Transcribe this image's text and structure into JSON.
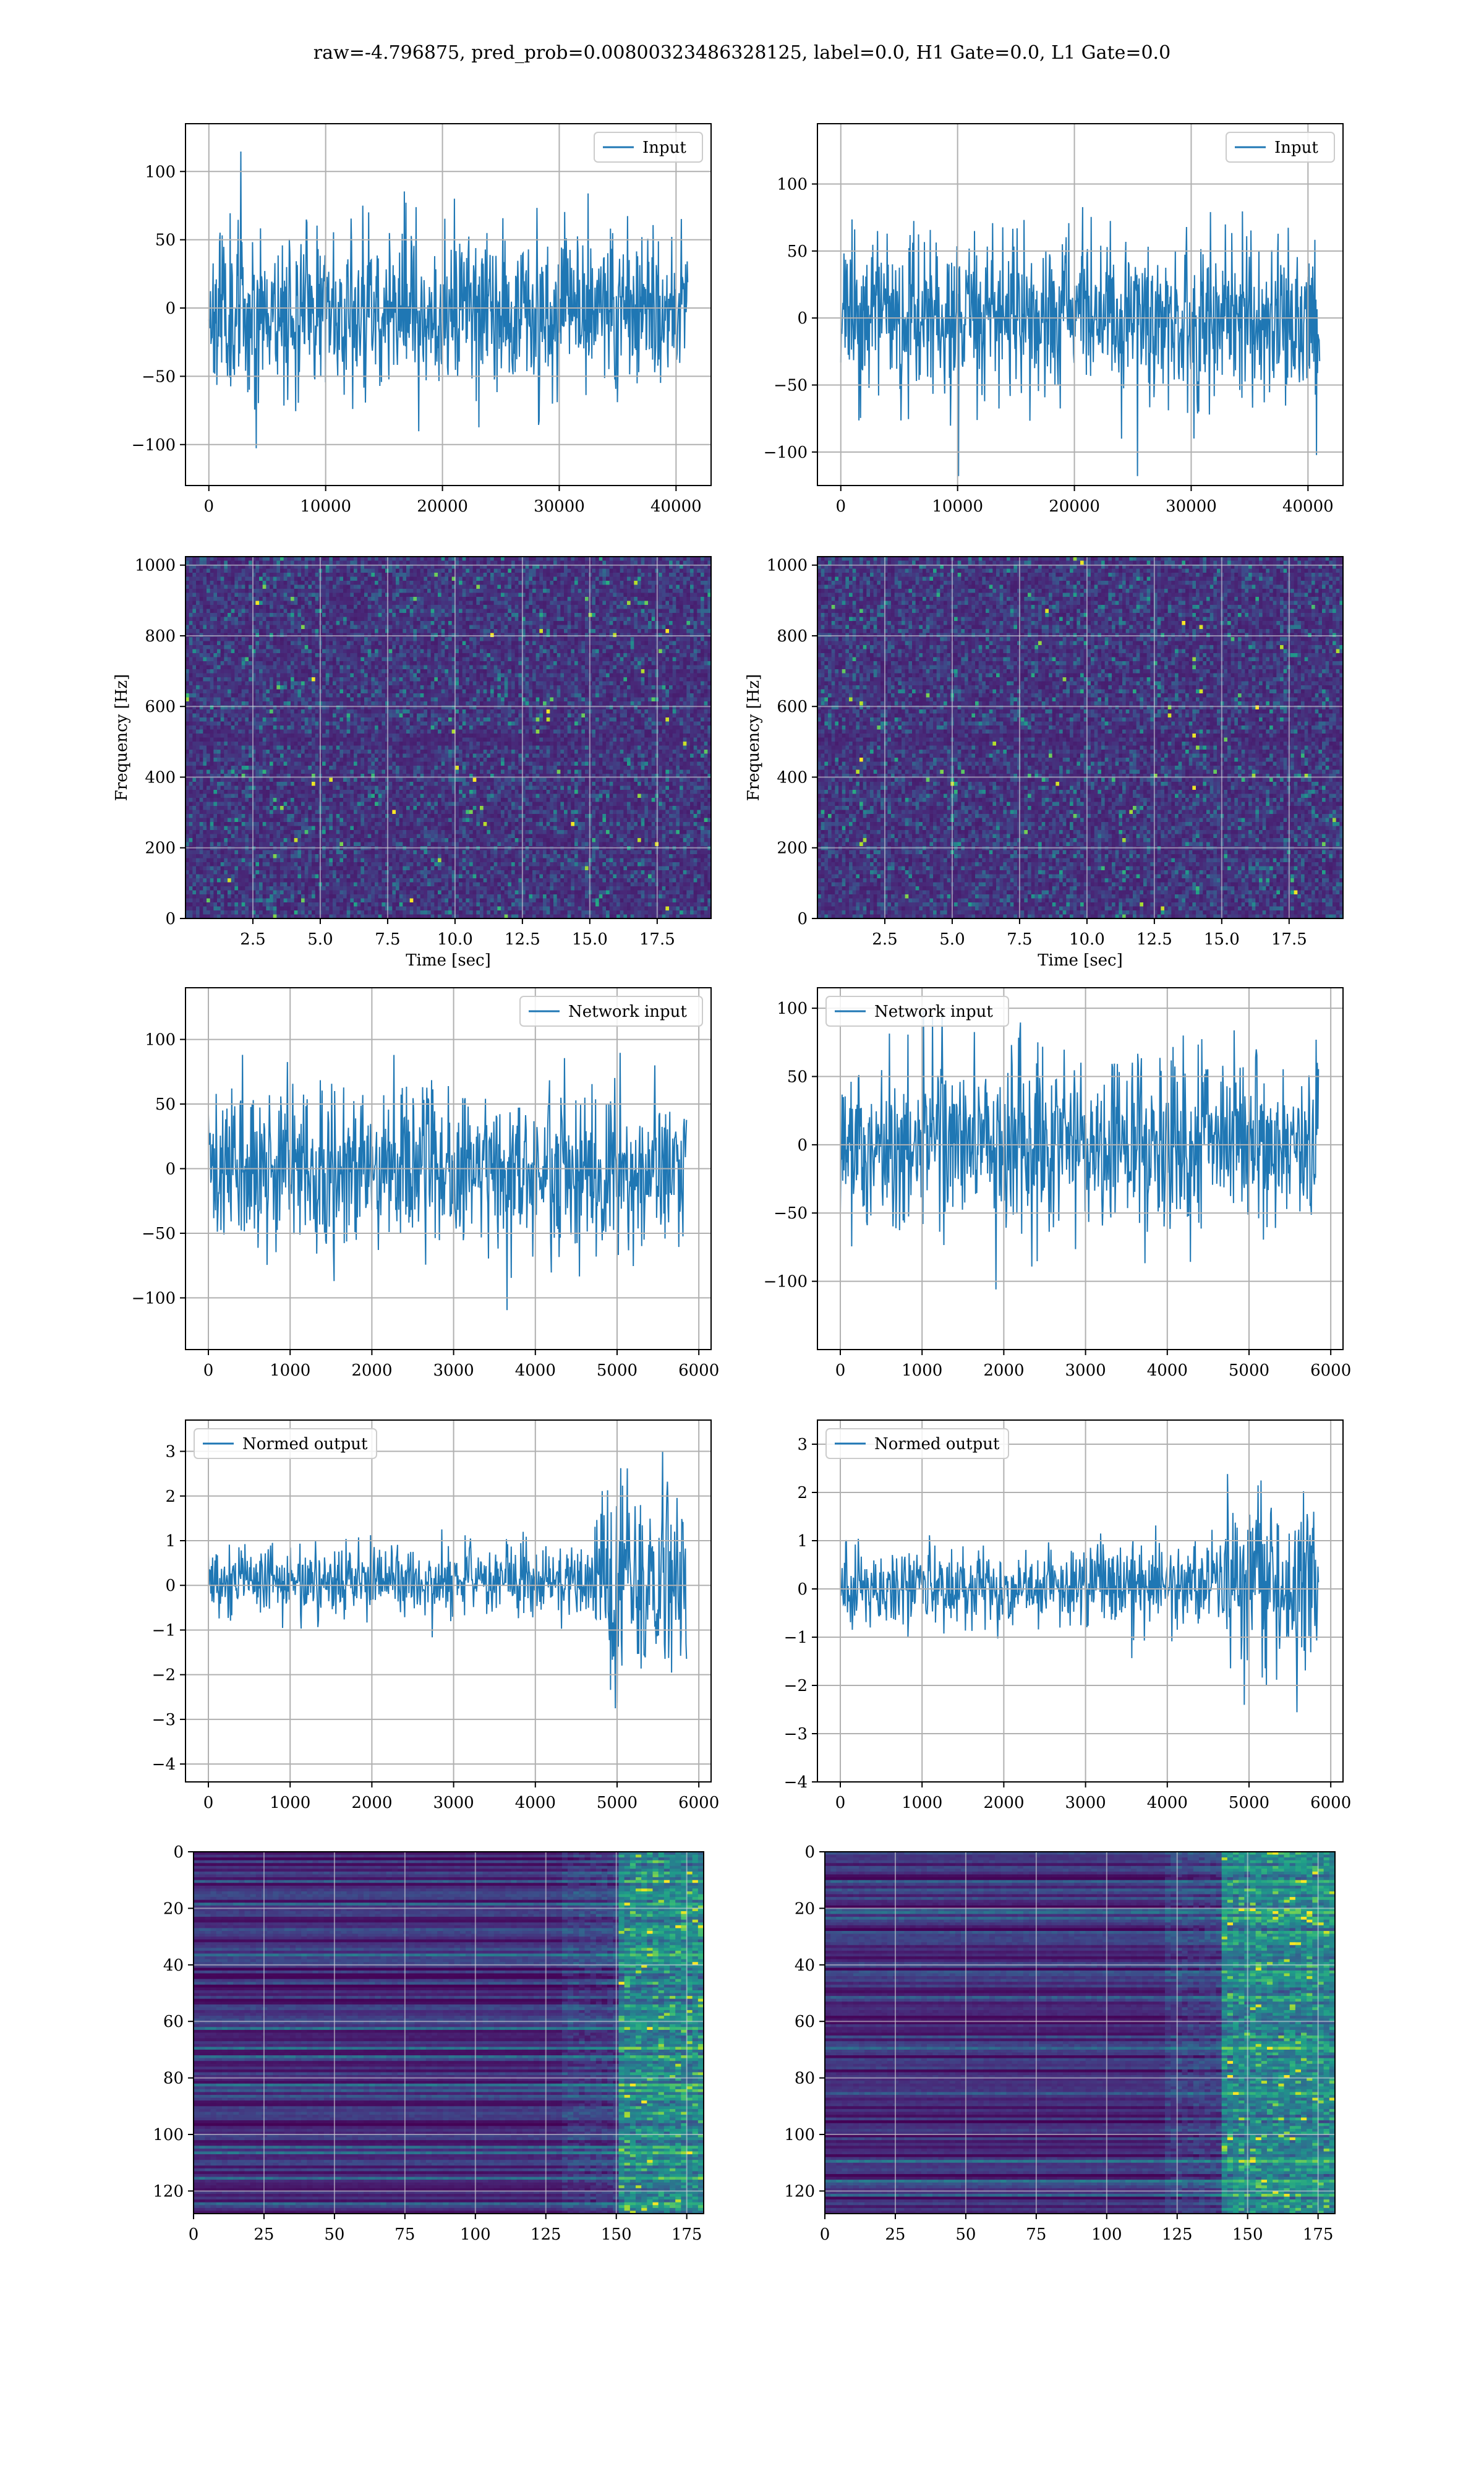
{
  "figure": {
    "suptitle": "raw=-4.796875, pred_prob=0.00800323486328125, label=0.0, H1 Gate=0.0, L1 Gate=0.0"
  },
  "colors": {
    "line": "#1f77b4",
    "grid": "#b0b0b0",
    "viridis": [
      "#440154",
      "#482878",
      "#3e4989",
      "#31688e",
      "#26828e",
      "#1f9e89",
      "#35b779",
      "#6ece58",
      "#b5de2b",
      "#fde725"
    ]
  },
  "chart_data": [
    {
      "id": "input-left",
      "type": "line",
      "legend": "Input",
      "legend_loc": "upper right",
      "xlim": [
        -2000,
        43000
      ],
      "ylim": [
        -130,
        135
      ],
      "xticks": [
        0,
        10000,
        20000,
        30000,
        40000
      ],
      "xtick_labels": [
        "0",
        "10000",
        "20000",
        "30000",
        "40000"
      ],
      "yticks": [
        -100,
        -50,
        0,
        50,
        100
      ],
      "ytick_labels": [
        "−100",
        "−50",
        "0",
        "50",
        "100"
      ],
      "grid": true,
      "xlabel": "",
      "ylabel": "",
      "signal": {
        "x_start": 0,
        "x_end": 41000,
        "n": 900,
        "seed": 11,
        "segments": [
          [
            0,
            41000,
            30
          ]
        ],
        "clip": [
          -125,
          125
        ],
        "bias": 0
      }
    },
    {
      "id": "input-right",
      "type": "line",
      "legend": "Input",
      "legend_loc": "upper right",
      "xlim": [
        -2000,
        43000
      ],
      "ylim": [
        -125,
        145
      ],
      "xticks": [
        0,
        10000,
        20000,
        30000,
        40000
      ],
      "xtick_labels": [
        "0",
        "10000",
        "20000",
        "30000",
        "40000"
      ],
      "yticks": [
        -100,
        -50,
        0,
        50,
        100
      ],
      "ytick_labels": [
        "−100",
        "−50",
        "0",
        "50",
        "100"
      ],
      "grid": true,
      "xlabel": "",
      "ylabel": "",
      "signal": {
        "x_start": 0,
        "x_end": 41000,
        "n": 900,
        "seed": 23,
        "segments": [
          [
            0,
            41000,
            30
          ]
        ],
        "clip": [
          -118,
          135
        ],
        "bias": 0
      }
    },
    {
      "id": "spectrogram-left",
      "type": "heatmap",
      "xlim": [
        0,
        19.5
      ],
      "ylim": [
        0,
        1024
      ],
      "xticks": [
        2.5,
        5.0,
        7.5,
        10.0,
        12.5,
        15.0,
        17.5
      ],
      "xtick_labels": [
        "2.5",
        "5.0",
        "7.5",
        "10.0",
        "12.5",
        "15.0",
        "17.5"
      ],
      "yticks": [
        0,
        200,
        400,
        600,
        800,
        1000
      ],
      "ytick_labels": [
        "0",
        "200",
        "400",
        "600",
        "800",
        "1000"
      ],
      "grid": true,
      "xlabel": "Time [sec]",
      "ylabel": "Frequency [Hz]",
      "heat": {
        "cols": 150,
        "rows": 90,
        "seed": 5,
        "mode": "spectrogram"
      }
    },
    {
      "id": "spectrogram-right",
      "type": "heatmap",
      "xlim": [
        0,
        19.5
      ],
      "ylim": [
        0,
        1024
      ],
      "xticks": [
        2.5,
        5.0,
        7.5,
        10.0,
        12.5,
        15.0,
        17.5
      ],
      "xtick_labels": [
        "2.5",
        "5.0",
        "7.5",
        "10.0",
        "12.5",
        "15.0",
        "17.5"
      ],
      "yticks": [
        0,
        200,
        400,
        600,
        800,
        1000
      ],
      "ytick_labels": [
        "0",
        "200",
        "400",
        "600",
        "800",
        "1000"
      ],
      "grid": true,
      "xlabel": "Time [sec]",
      "ylabel": "Frequency [Hz]",
      "heat": {
        "cols": 150,
        "rows": 90,
        "seed": 9,
        "mode": "spectrogram"
      }
    },
    {
      "id": "network-input-left",
      "type": "line",
      "legend": "Network input",
      "legend_loc": "upper right",
      "xlim": [
        -280,
        6150
      ],
      "ylim": [
        -140,
        140
      ],
      "xticks": [
        0,
        1000,
        2000,
        3000,
        4000,
        5000,
        6000
      ],
      "xtick_labels": [
        "0",
        "1000",
        "2000",
        "3000",
        "4000",
        "5000",
        "6000"
      ],
      "yticks": [
        -100,
        -50,
        0,
        50,
        100
      ],
      "ytick_labels": [
        "−100",
        "−50",
        "0",
        "50",
        "100"
      ],
      "grid": true,
      "xlabel": "",
      "ylabel": "",
      "signal": {
        "x_start": 0,
        "x_end": 5850,
        "n": 800,
        "seed": 31,
        "segments": [
          [
            0,
            5850,
            30
          ]
        ],
        "clip": [
          -125,
          125
        ],
        "bias": 0
      }
    },
    {
      "id": "network-input-right",
      "type": "line",
      "legend": "Network input",
      "legend_loc": "upper left",
      "xlim": [
        -280,
        6150
      ],
      "ylim": [
        -150,
        115
      ],
      "xticks": [
        0,
        1000,
        2000,
        3000,
        4000,
        5000,
        6000
      ],
      "xtick_labels": [
        "0",
        "1000",
        "2000",
        "3000",
        "4000",
        "5000",
        "6000"
      ],
      "yticks": [
        -100,
        -50,
        0,
        50,
        100
      ],
      "ytick_labels": [
        "−100",
        "−50",
        "0",
        "50",
        "100"
      ],
      "grid": true,
      "xlabel": "",
      "ylabel": "",
      "signal": {
        "x_start": 0,
        "x_end": 5850,
        "n": 800,
        "seed": 47,
        "segments": [
          [
            0,
            5850,
            32
          ]
        ],
        "clip": [
          -135,
          105
        ],
        "bias": 0
      }
    },
    {
      "id": "normed-output-left",
      "type": "line",
      "legend": "Normed output",
      "legend_loc": "upper left",
      "xlim": [
        -280,
        6150
      ],
      "ylim": [
        -4.4,
        3.7
      ],
      "xticks": [
        0,
        1000,
        2000,
        3000,
        4000,
        5000,
        6000
      ],
      "xtick_labels": [
        "0",
        "1000",
        "2000",
        "3000",
        "4000",
        "5000",
        "6000"
      ],
      "yticks": [
        -4,
        -3,
        -2,
        -1,
        0,
        1,
        2,
        3
      ],
      "ytick_labels": [
        "−4",
        "−3",
        "−2",
        "−1",
        "0",
        "1",
        "2",
        "3"
      ],
      "grid": true,
      "xlabel": "",
      "ylabel": "",
      "signal": {
        "x_start": 0,
        "x_end": 5850,
        "n": 800,
        "seed": 53,
        "segments": [
          [
            0,
            4700,
            0.42
          ],
          [
            4700,
            5850,
            1.0
          ]
        ],
        "clip": [
          -4.1,
          3.4
        ],
        "bias": 0.1
      }
    },
    {
      "id": "normed-output-right",
      "type": "line",
      "legend": "Normed output",
      "legend_loc": "upper left",
      "xlim": [
        -280,
        6150
      ],
      "ylim": [
        -4.0,
        3.5
      ],
      "xticks": [
        0,
        1000,
        2000,
        3000,
        4000,
        5000,
        6000
      ],
      "xtick_labels": [
        "0",
        "1000",
        "2000",
        "3000",
        "4000",
        "5000",
        "6000"
      ],
      "yticks": [
        -4,
        -3,
        -2,
        -1,
        0,
        1,
        2,
        3
      ],
      "ytick_labels": [
        "−4",
        "−3",
        "−2",
        "−1",
        "0",
        "1",
        "2",
        "3"
      ],
      "grid": true,
      "xlabel": "",
      "ylabel": "",
      "signal": {
        "x_start": 0,
        "x_end": 5850,
        "n": 800,
        "seed": 71,
        "segments": [
          [
            0,
            4700,
            0.42
          ],
          [
            4700,
            5850,
            1.0
          ]
        ],
        "clip": [
          -3.7,
          3.3
        ],
        "bias": 0.05
      }
    },
    {
      "id": "feature-map-left",
      "type": "heatmap",
      "xlim": [
        0,
        181
      ],
      "ylim": [
        128,
        0
      ],
      "xticks": [
        0,
        25,
        50,
        75,
        100,
        125,
        150,
        175
      ],
      "xtick_labels": [
        "0",
        "25",
        "50",
        "75",
        "100",
        "125",
        "150",
        "175"
      ],
      "yticks": [
        0,
        20,
        40,
        60,
        80,
        100,
        120
      ],
      "ytick_labels": [
        "0",
        "20",
        "40",
        "60",
        "80",
        "100",
        "120"
      ],
      "grid": true,
      "xlabel": "",
      "ylabel": "",
      "heat": {
        "cols": 181,
        "rows": 128,
        "seed": 13,
        "mode": "features",
        "onset": 150
      }
    },
    {
      "id": "feature-map-right",
      "type": "heatmap",
      "xlim": [
        0,
        181
      ],
      "ylim": [
        128,
        0
      ],
      "xticks": [
        0,
        25,
        50,
        75,
        100,
        125,
        150,
        175
      ],
      "xtick_labels": [
        "0",
        "25",
        "50",
        "75",
        "100",
        "125",
        "150",
        "175"
      ],
      "yticks": [
        0,
        20,
        40,
        60,
        80,
        100,
        120
      ],
      "ytick_labels": [
        "0",
        "20",
        "40",
        "60",
        "80",
        "100",
        "120"
      ],
      "grid": true,
      "xlabel": "",
      "ylabel": "",
      "heat": {
        "cols": 181,
        "rows": 128,
        "seed": 29,
        "mode": "features",
        "onset": 140
      }
    }
  ]
}
